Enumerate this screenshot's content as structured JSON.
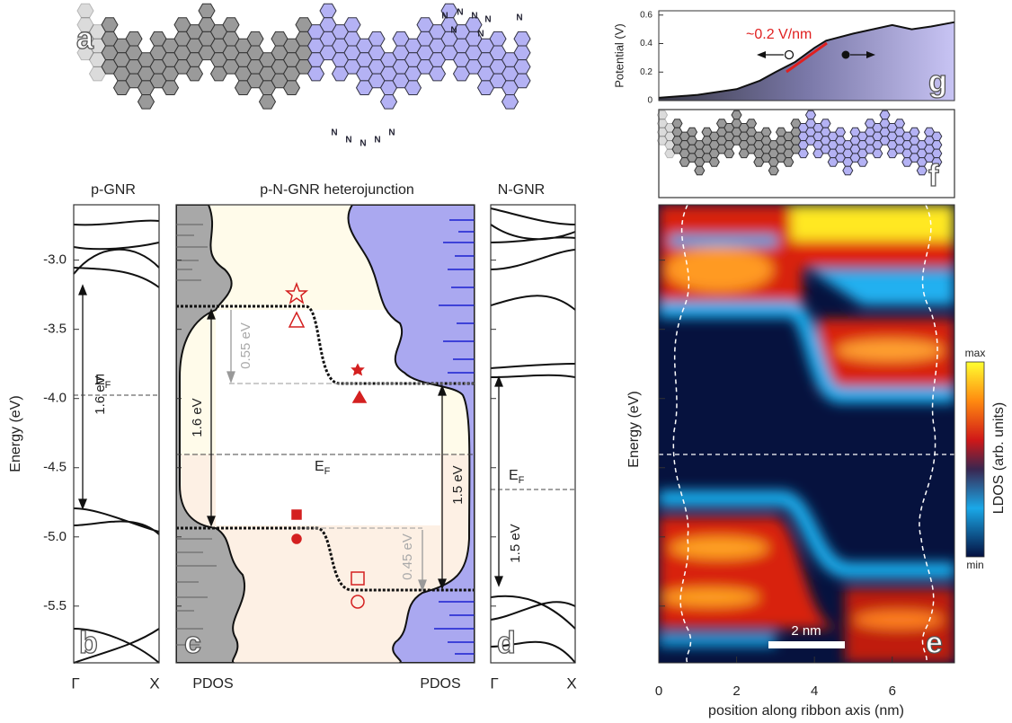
{
  "panel_labels": [
    "a",
    "b",
    "c",
    "d",
    "e",
    "f",
    "g"
  ],
  "titles": [
    "p-GNR",
    "p-N-GNR heterojunction",
    "N-GNR"
  ],
  "energy_axis": {
    "label": "Energy (eV)",
    "ylim": [
      -5.91,
      -2.6
    ],
    "yticks": [
      {
        "value": -3,
        "label": "-3.0"
      },
      -3.5,
      {
        "value": -4,
        "label": "-4.0"
      },
      -4.5,
      {
        "value": -5,
        "label": "-5.0"
      },
      -5.5
    ]
  },
  "bottom_labels": [
    "Γ",
    "X",
    "PDOS",
    "PDOS",
    "Γ",
    "X"
  ],
  "fermi_labels": [
    {
      "main": "E",
      "sub": "F"
    },
    {
      "main": "E",
      "sub": "F"
    },
    {
      "main": "E",
      "sub": "F"
    }
  ],
  "gap_labels": [
    "1.6 eV",
    "1.6 eV",
    "0.55 eV",
    "0.45 eV",
    "1.5 eV",
    "1.5 eV"
  ],
  "nitrogen_labels": [
    "N",
    "N",
    "N",
    "N",
    "N",
    "N",
    "N",
    "N",
    "N",
    "N",
    "N",
    "N"
  ],
  "potential": {
    "ylabel": "Potential (V)",
    "ylim": [
      0,
      0.63
    ],
    "yticks": [
      0,
      0.2,
      0.4,
      0.6
    ],
    "x": [
      0,
      1,
      2,
      2.6,
      3,
      3.5,
      4,
      4.3,
      5,
      6,
      6.5,
      7,
      7.6
    ],
    "values": [
      0.02,
      0.04,
      0.08,
      0.14,
      0.2,
      0.27,
      0.37,
      0.42,
      0.47,
      0.53,
      0.5,
      0.52,
      0.55
    ],
    "annotation": "~0.2 V/nm"
  },
  "position_axis": {
    "label": "position along ribbon axis (nm)",
    "xlim": [
      0,
      7.6
    ],
    "xticks": [
      0,
      2,
      4,
      6
    ]
  },
  "colorbar": {
    "label": "LDOS (arb. units)",
    "max": "max",
    "min": "min"
  },
  "scale_bar": "2 nm"
}
